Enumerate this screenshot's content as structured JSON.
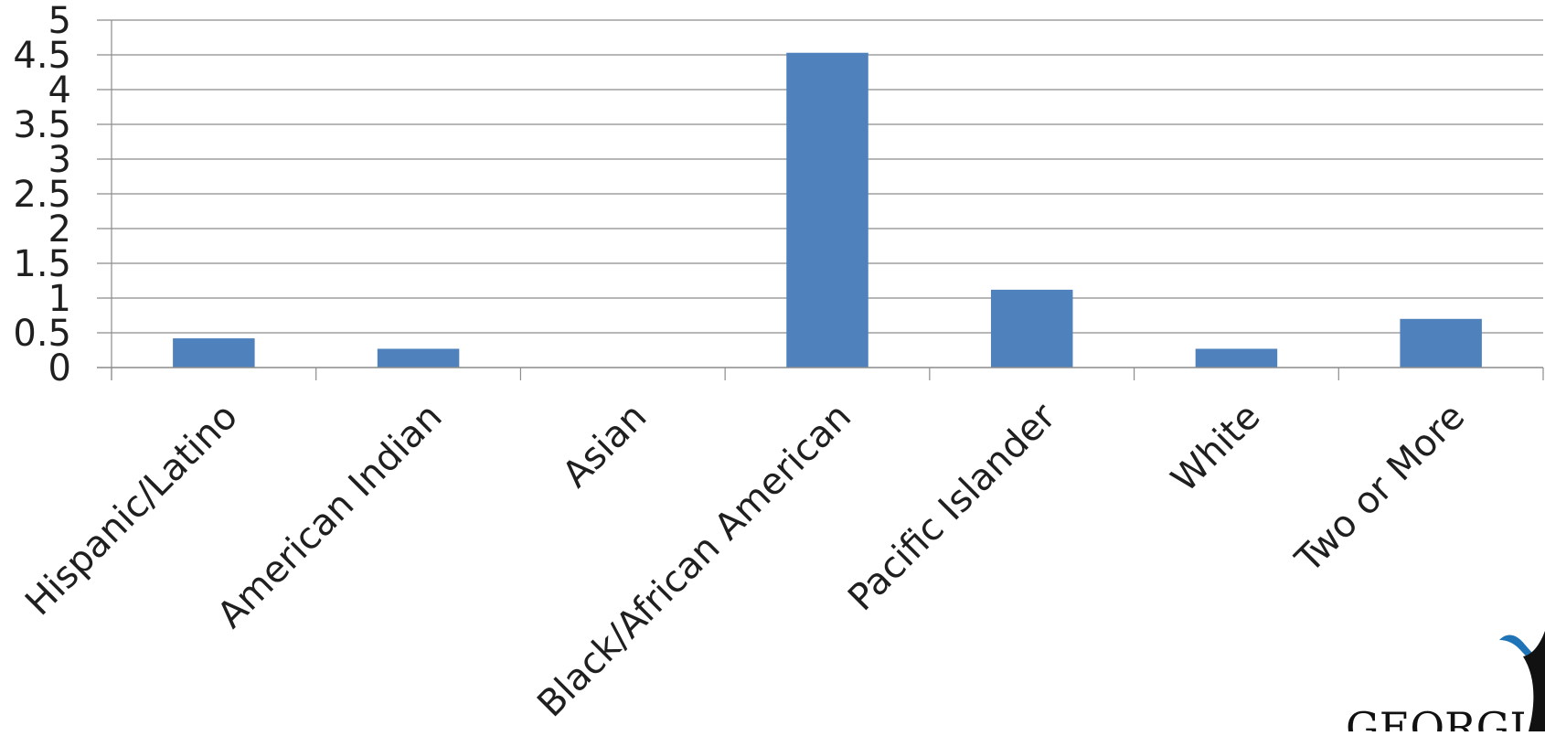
{
  "chart_data": {
    "type": "bar",
    "categories": [
      "Hispanic/Latino",
      "American Indian",
      "Asian",
      "Black/African American",
      "Pacific Islander",
      "White",
      "Two or More"
    ],
    "values": [
      0.42,
      0.27,
      0.0,
      4.53,
      1.12,
      0.27,
      0.7
    ],
    "title": "",
    "xlabel": "",
    "ylabel": "",
    "ylim": [
      0,
      5
    ],
    "yticks": [
      "0",
      "0.5",
      "1",
      "1.5",
      "2",
      "2.5",
      "3",
      "3.5",
      "4",
      "4.5",
      "5"
    ],
    "ytick_values": [
      0,
      0.5,
      1,
      1.5,
      2,
      2.5,
      3,
      3.5,
      4,
      4.5,
      5
    ],
    "grid": true,
    "legend": "none",
    "colors": {
      "bar": "#4f81bd",
      "grid": "#8c8c8c",
      "axis": "#8c8c8c",
      "logo_swoosh": "#1f73b7"
    }
  },
  "logo": {
    "text": "GEORGI",
    "icon": "georgia-logo-icon"
  }
}
